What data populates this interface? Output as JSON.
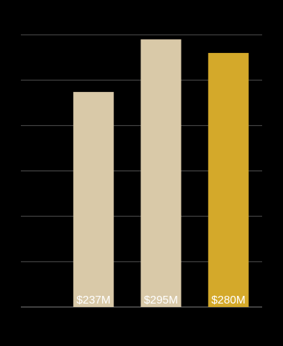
{
  "chart_data": {
    "type": "bar",
    "categories": [
      null,
      null,
      null
    ],
    "values": [
      237,
      295,
      280
    ],
    "value_labels": [
      "$237M",
      "$295M",
      "$280M"
    ],
    "colors": [
      "#d9c9a8",
      "#d9c9a8",
      "#d4a92a"
    ],
    "ylim": [
      0,
      300
    ],
    "yticks": [
      0,
      50,
      100,
      150,
      200,
      250,
      300
    ],
    "grid": true
  }
}
